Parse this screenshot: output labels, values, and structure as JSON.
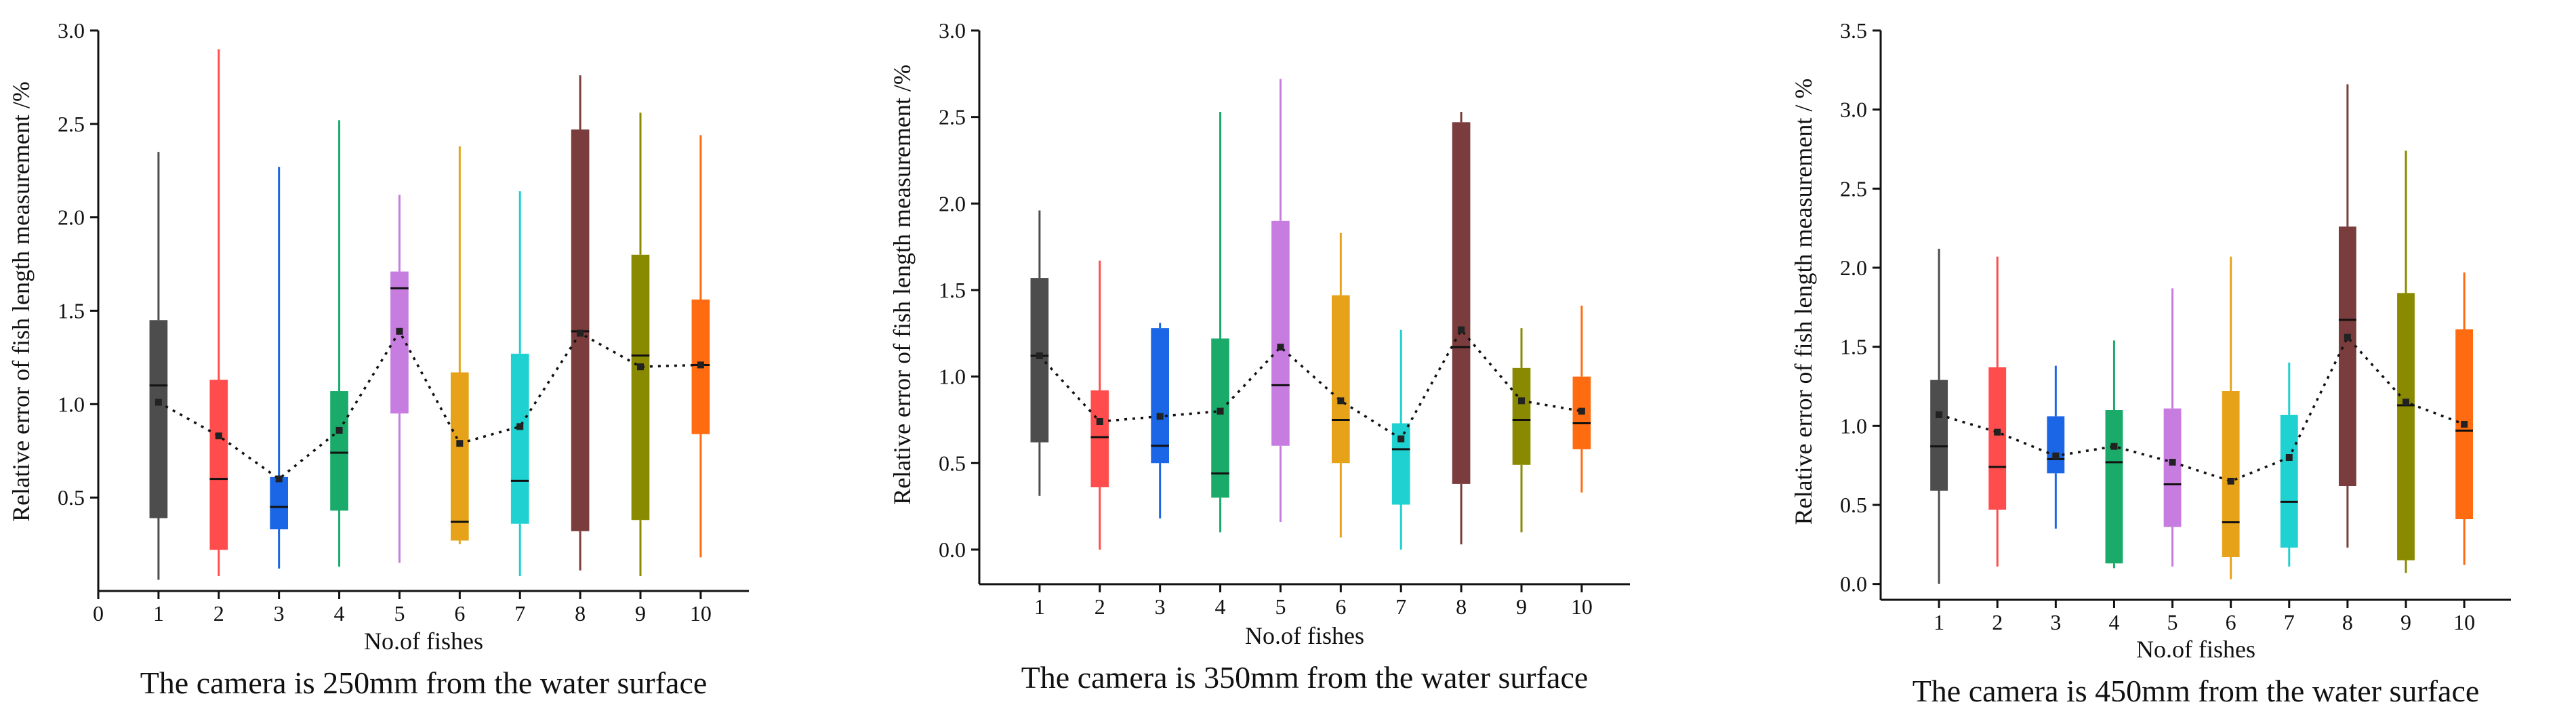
{
  "colors": {
    "boxes": [
      "#4d4d4d",
      "#ff4d4d",
      "#1a66e6",
      "#1aab6b",
      "#c77ce0",
      "#e6a31a",
      "#1fd1d1",
      "#7a3c3c",
      "#8a8a00",
      "#ff6b10"
    ],
    "mean_line": "#111111",
    "axis": "#111111"
  },
  "chart_data": [
    {
      "type": "box",
      "title": "The camera is 250mm from the water surface",
      "xlabel": "No.of fishes",
      "ylabel": "Relative error of fish length measurement /%",
      "x_tick_labels": [
        "0",
        "1",
        "2",
        "3",
        "4",
        "5",
        "6",
        "7",
        "8",
        "9",
        "10"
      ],
      "xlim": [
        0,
        10.8
      ],
      "ylim": [
        0,
        3.0
      ],
      "y_ticks": [
        0.5,
        1.0,
        1.5,
        2.0,
        2.5,
        3.0
      ],
      "y_tick_labels": [
        "0.5",
        "1.0",
        "1.5",
        "2.0",
        "2.5",
        "3.0"
      ],
      "categories": [
        "1",
        "2",
        "3",
        "4",
        "5",
        "6",
        "7",
        "8",
        "9",
        "10"
      ],
      "boxes": [
        {
          "min": 0.06,
          "q1": 0.39,
          "median": 1.1,
          "q3": 1.45,
          "max": 2.35,
          "mean": 1.01
        },
        {
          "min": 0.08,
          "q1": 0.22,
          "median": 0.6,
          "q3": 1.13,
          "max": 2.9,
          "mean": 0.83
        },
        {
          "min": 0.12,
          "q1": 0.33,
          "median": 0.45,
          "q3": 0.61,
          "max": 2.27,
          "mean": 0.6
        },
        {
          "min": 0.13,
          "q1": 0.43,
          "median": 0.74,
          "q3": 1.07,
          "max": 2.52,
          "mean": 0.86
        },
        {
          "min": 0.15,
          "q1": 0.95,
          "median": 1.62,
          "q3": 1.71,
          "max": 2.12,
          "mean": 1.39
        },
        {
          "min": 0.25,
          "q1": 0.27,
          "median": 0.37,
          "q3": 1.17,
          "max": 2.38,
          "mean": 0.79
        },
        {
          "min": 0.08,
          "q1": 0.36,
          "median": 0.59,
          "q3": 1.27,
          "max": 2.14,
          "mean": 0.88
        },
        {
          "min": 0.11,
          "q1": 0.32,
          "median": 1.39,
          "q3": 2.47,
          "max": 2.76,
          "mean": 1.38
        },
        {
          "min": 0.08,
          "q1": 0.38,
          "median": 1.26,
          "q3": 1.8,
          "max": 2.56,
          "mean": 1.2
        },
        {
          "min": 0.18,
          "q1": 0.84,
          "median": 1.21,
          "q3": 1.56,
          "max": 2.44,
          "mean": 1.21
        }
      ]
    },
    {
      "type": "box",
      "title": "The camera is 350mm from the water surface",
      "xlabel": "No.of fishes",
      "ylabel": "Relative error of fish length measurement /%",
      "x_tick_labels": [
        "1",
        "2",
        "3",
        "4",
        "5",
        "6",
        "7",
        "8",
        "9",
        "10"
      ],
      "xlim": [
        0,
        10.8
      ],
      "ylim": [
        -0.2,
        3.0
      ],
      "y_ticks": [
        0.0,
        0.5,
        1.0,
        1.5,
        2.0,
        2.5,
        3.0
      ],
      "y_tick_labels": [
        "0.0",
        "0.5",
        "1.0",
        "1.5",
        "2.0",
        "2.5",
        "3.0"
      ],
      "categories": [
        "1",
        "2",
        "3",
        "4",
        "5",
        "6",
        "7",
        "8",
        "9",
        "10"
      ],
      "boxes": [
        {
          "min": 0.31,
          "q1": 0.62,
          "median": 1.12,
          "q3": 1.57,
          "max": 1.96,
          "mean": 1.12
        },
        {
          "min": 0.0,
          "q1": 0.36,
          "median": 0.65,
          "q3": 0.92,
          "max": 1.67,
          "mean": 0.74
        },
        {
          "min": 0.18,
          "q1": 0.5,
          "median": 0.6,
          "q3": 1.28,
          "max": 1.31,
          "mean": 0.77
        },
        {
          "min": 0.1,
          "q1": 0.3,
          "median": 0.44,
          "q3": 1.22,
          "max": 2.53,
          "mean": 0.8
        },
        {
          "min": 0.16,
          "q1": 0.6,
          "median": 0.95,
          "q3": 1.9,
          "max": 2.72,
          "mean": 1.17
        },
        {
          "min": 0.07,
          "q1": 0.5,
          "median": 0.75,
          "q3": 1.47,
          "max": 1.83,
          "mean": 0.86
        },
        {
          "min": 0.0,
          "q1": 0.26,
          "median": 0.58,
          "q3": 0.73,
          "max": 1.27,
          "mean": 0.64
        },
        {
          "min": 0.03,
          "q1": 0.38,
          "median": 1.17,
          "q3": 2.47,
          "max": 2.53,
          "mean": 1.27
        },
        {
          "min": 0.1,
          "q1": 0.49,
          "median": 0.75,
          "q3": 1.05,
          "max": 1.28,
          "mean": 0.86
        },
        {
          "min": 0.33,
          "q1": 0.58,
          "median": 0.73,
          "q3": 1.0,
          "max": 1.41,
          "mean": 0.8
        }
      ]
    },
    {
      "type": "box",
      "title": "The camera is 450mm from the water surface",
      "xlabel": "No.of fishes",
      "ylabel": "Relative error of fish length measurement / %",
      "x_tick_labels": [
        "1",
        "2",
        "3",
        "4",
        "5",
        "6",
        "7",
        "8",
        "9",
        "10"
      ],
      "xlim": [
        0,
        10.8
      ],
      "ylim": [
        -0.1,
        3.5
      ],
      "y_ticks": [
        0.0,
        0.5,
        1.0,
        1.5,
        2.0,
        2.5,
        3.0,
        3.5
      ],
      "y_tick_labels": [
        "0.0",
        "0.5",
        "1.0",
        "1.5",
        "2.0",
        "2.5",
        "3.0",
        "3.5"
      ],
      "categories": [
        "1",
        "2",
        "3",
        "4",
        "5",
        "6",
        "7",
        "8",
        "9",
        "10"
      ],
      "boxes": [
        {
          "min": 0.0,
          "q1": 0.59,
          "median": 0.87,
          "q3": 1.29,
          "max": 2.12,
          "mean": 1.07
        },
        {
          "min": 0.11,
          "q1": 0.47,
          "median": 0.74,
          "q3": 1.37,
          "max": 2.07,
          "mean": 0.96
        },
        {
          "min": 0.35,
          "q1": 0.7,
          "median": 0.79,
          "q3": 1.06,
          "max": 1.38,
          "mean": 0.81
        },
        {
          "min": 0.1,
          "q1": 0.13,
          "median": 0.77,
          "q3": 1.1,
          "max": 1.54,
          "mean": 0.87
        },
        {
          "min": 0.11,
          "q1": 0.36,
          "median": 0.63,
          "q3": 1.11,
          "max": 1.87,
          "mean": 0.77
        },
        {
          "min": 0.03,
          "q1": 0.17,
          "median": 0.39,
          "q3": 1.22,
          "max": 2.07,
          "mean": 0.65
        },
        {
          "min": 0.11,
          "q1": 0.23,
          "median": 0.52,
          "q3": 1.07,
          "max": 1.4,
          "mean": 0.8
        },
        {
          "min": 0.23,
          "q1": 0.62,
          "median": 1.67,
          "q3": 2.26,
          "max": 3.16,
          "mean": 1.56
        },
        {
          "min": 0.07,
          "q1": 0.15,
          "median": 1.13,
          "q3": 1.84,
          "max": 2.74,
          "mean": 1.15
        },
        {
          "min": 0.12,
          "q1": 0.41,
          "median": 0.97,
          "q3": 1.61,
          "max": 1.97,
          "mean": 1.01
        }
      ]
    }
  ]
}
